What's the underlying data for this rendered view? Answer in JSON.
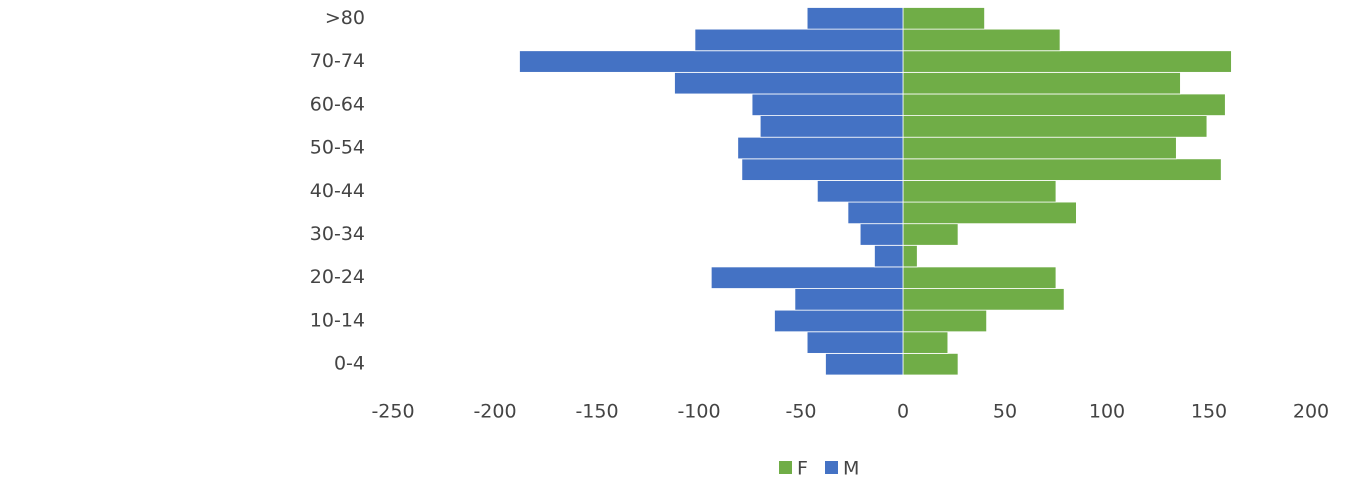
{
  "chart_data": {
    "type": "bar",
    "orientation": "horizontal",
    "stacked": true,
    "categories": [
      "0-4",
      null,
      "10-14",
      null,
      "20-24",
      null,
      "30-34",
      null,
      "40-44",
      null,
      "50-54",
      null,
      "60-64",
      null,
      "70-74",
      null,
      ">80"
    ],
    "series": [
      {
        "name": "F",
        "color": "#70ad47",
        "values": [
          27,
          22,
          41,
          79,
          75,
          7,
          27,
          85,
          75,
          156,
          134,
          149,
          158,
          136,
          161,
          77,
          40
        ]
      },
      {
        "name": "M",
        "color": "#4472c4",
        "values": [
          -38,
          -47,
          -63,
          -53,
          -94,
          -14,
          -21,
          -27,
          -42,
          -79,
          -81,
          -70,
          -74,
          -112,
          -188,
          -102,
          -47
        ]
      }
    ],
    "xlim": [
      -250,
      200
    ],
    "xticks": [
      -250,
      -200,
      -150,
      -100,
      -50,
      0,
      50,
      100,
      150,
      200
    ],
    "grid": false,
    "legend": "bottom"
  }
}
